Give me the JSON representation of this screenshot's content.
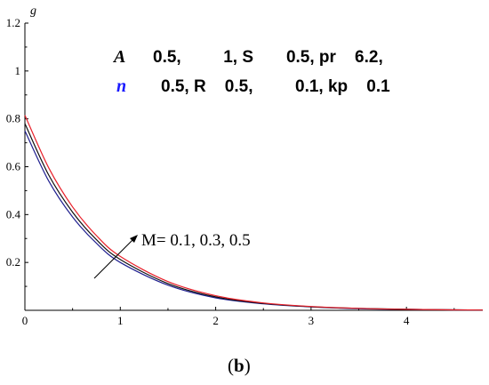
{
  "chart_data": {
    "type": "line",
    "ylabel": "g",
    "xlabel": "",
    "xlim": [
      0,
      4.8
    ],
    "ylim": [
      0,
      1.2
    ],
    "x_ticks": [
      "0",
      "1",
      "2",
      "3",
      "4"
    ],
    "y_ticks": [
      "0.2",
      "0.4",
      "0.6",
      "0.8",
      "1",
      "1.2"
    ],
    "params_line1": {
      "sym": "A",
      "text": "0.5,         1, S       0.5, pr    6.2,"
    },
    "params_line2": {
      "sym": "n",
      "text": "0.5, R    0.5,         0.1, kp    0.1"
    },
    "annotation": "M= 0.1, 0.3, 0.5",
    "panel_label": "b",
    "series": [
      {
        "color": "#1f1f8f",
        "x": [
          0,
          0.25,
          0.5,
          0.75,
          1,
          1.5,
          2,
          2.5,
          3,
          3.5,
          4,
          4.5,
          4.8
        ],
        "values": [
          0.75,
          0.54,
          0.39,
          0.28,
          0.2,
          0.105,
          0.052,
          0.027,
          0.014,
          0.007,
          0.004,
          0.002,
          0.001
        ]
      },
      {
        "color": "#111111",
        "x": [
          0,
          0.25,
          0.5,
          0.75,
          1,
          1.5,
          2,
          2.5,
          3,
          3.5,
          4,
          4.5,
          4.8
        ],
        "values": [
          0.78,
          0.565,
          0.41,
          0.295,
          0.212,
          0.112,
          0.056,
          0.029,
          0.015,
          0.008,
          0.004,
          0.002,
          0.001
        ]
      },
      {
        "color": "#e8202a",
        "x": [
          0,
          0.25,
          0.5,
          0.75,
          1,
          1.5,
          2,
          2.5,
          3,
          3.5,
          4,
          4.5,
          4.8
        ],
        "values": [
          0.815,
          0.595,
          0.432,
          0.312,
          0.225,
          0.12,
          0.061,
          0.031,
          0.016,
          0.008,
          0.004,
          0.002,
          0.001
        ]
      }
    ],
    "colors": {
      "param_A": "#000000",
      "param_n": "#1a1aff"
    }
  }
}
